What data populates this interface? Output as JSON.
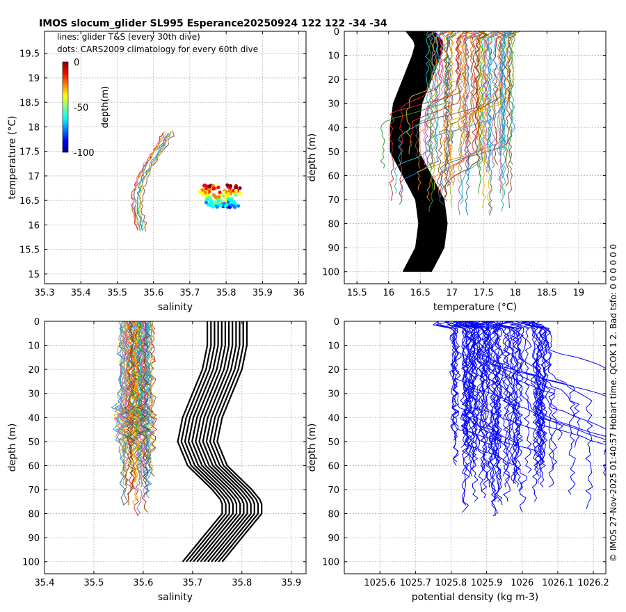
{
  "figure": {
    "title": "IMOS slocum_glider SL995 Esperance20250924 122  122  -34  -34",
    "side_note": "© IMOS 27-Nov-2025 01:40:57 Hobart time. QCOK 1  2. Bad tsfo: 0  0  0  0  0  0"
  },
  "colors": {
    "axis": "#000000",
    "grid": "#b4b4b4",
    "profile_black": "#000000",
    "density_line": "#0000ff",
    "line_palette": [
      "#ff7f0e",
      "#1f77b4",
      "#2ca02c",
      "#d62728",
      "#9467bd",
      "#8c564b",
      "#e377c2",
      "#bcbd22",
      "#17becf",
      "#ffb000",
      "#7f3f00",
      "#3a9bdc"
    ],
    "colorbar": [
      "#7f0000",
      "#ff0000",
      "#ff8000",
      "#ffff00",
      "#80ff80",
      "#00ffff",
      "#0080ff",
      "#0000ff",
      "#00008f"
    ]
  },
  "chart_data": [
    {
      "id": "ts",
      "type": "scatter",
      "title": "",
      "xlabel": "salinity",
      "ylabel": "temperature (°C)",
      "xlim": [
        35.3,
        36.02
      ],
      "ylim": [
        14.8,
        19.95
      ],
      "xticks": [
        35.3,
        35.4,
        35.5,
        35.6,
        35.7,
        35.8,
        35.9,
        36
      ],
      "xtick_labels": [
        "35.3",
        "35.4",
        "35.5",
        "35.6",
        "35.7",
        "35.8",
        "35.9",
        "36"
      ],
      "yticks": [
        15,
        15.5,
        16,
        16.5,
        17,
        17.5,
        18,
        18.5,
        19,
        19.5
      ],
      "ytick_labels": [
        "15",
        "15.5",
        "16",
        "16.5",
        "17",
        "17.5",
        "18",
        "18.5",
        "19",
        "19.5"
      ],
      "grid": true,
      "legend_lines": [
        "lines: glider T&S (every 30th dive)",
        "dots: CARS2009 climatology for every 60th dive"
      ],
      "colorbar": {
        "label": "depth(m)",
        "ticks": [
          "0",
          "-50",
          "-100"
        ],
        "range": [
          -100,
          0
        ]
      },
      "glider_lines": {
        "n": 10,
        "salinity_start": 35.53,
        "salinity_end": 35.62,
        "temperature_start": 15.9,
        "temperature_end": 17.9,
        "depth_range": [
          0,
          -100
        ]
      },
      "climatology_dots": {
        "n": 120,
        "salinity_range": [
          35.7,
          35.83
        ],
        "temperature_range": [
          16.2,
          16.85
        ],
        "depth_range": [
          0,
          -100
        ]
      }
    },
    {
      "id": "temp_depth",
      "type": "line",
      "xlabel": "temperature (°C)",
      "ylabel": "depth (m)",
      "xlim": [
        15.3,
        19.43
      ],
      "ylim": [
        0,
        105
      ],
      "y_reversed": true,
      "xticks": [
        15.5,
        16,
        16.5,
        17,
        17.5,
        18,
        18.5,
        19
      ],
      "xtick_labels": [
        "15.5",
        "16",
        "16.5",
        "17",
        "17.5",
        "18",
        "18.5",
        "19"
      ],
      "yticks": [
        0,
        10,
        20,
        30,
        40,
        50,
        60,
        70,
        80,
        90,
        100
      ],
      "ytick_labels": [
        "0",
        "10",
        "20",
        "30",
        "40",
        "50",
        "60",
        "70",
        "80",
        "90",
        "100"
      ],
      "grid": true,
      "climatology": {
        "depth": [
          0,
          5,
          10,
          20,
          30,
          40,
          50,
          60,
          70,
          80,
          90,
          100
        ],
        "temperature": [
          16.5,
          16.65,
          16.6,
          16.45,
          16.3,
          16.25,
          16.25,
          16.45,
          16.65,
          16.7,
          16.65,
          16.45
        ],
        "spread": 0.22
      },
      "glider_profiles": {
        "n": 70,
        "temperature_range": [
          15.8,
          18.05
        ],
        "max_depth": [
          45,
          78
        ]
      }
    },
    {
      "id": "sal_depth",
      "type": "line",
      "xlabel": "salinity",
      "ylabel": "depth (m)",
      "xlim": [
        35.4,
        35.93
      ],
      "ylim": [
        0,
        105
      ],
      "y_reversed": true,
      "xticks": [
        35.4,
        35.5,
        35.6,
        35.7,
        35.8,
        35.9
      ],
      "xtick_labels": [
        "35.4",
        "35.5",
        "35.6",
        "35.7",
        "35.8",
        "35.9"
      ],
      "yticks": [
        0,
        10,
        20,
        30,
        40,
        50,
        60,
        70,
        80,
        90,
        100
      ],
      "ytick_labels": [
        "0",
        "10",
        "20",
        "30",
        "40",
        "50",
        "60",
        "70",
        "80",
        "90",
        "100"
      ],
      "grid": true,
      "climatology": {
        "depth": [
          0,
          10,
          20,
          30,
          40,
          50,
          60,
          70,
          75,
          80,
          90,
          100
        ],
        "salinity": [
          35.77,
          35.77,
          35.76,
          35.74,
          35.72,
          35.71,
          35.73,
          35.78,
          35.8,
          35.8,
          35.76,
          35.72
        ],
        "spread": 0.04
      },
      "glider_profiles": {
        "n": 60,
        "salinity_range": [
          35.54,
          35.63
        ],
        "max_depth": [
          40,
          82
        ]
      }
    },
    {
      "id": "dens_depth",
      "type": "line",
      "xlabel": "potential density (kg m-3)",
      "ylabel": "depth (m)",
      "xlim": [
        1025.5,
        1026.235
      ],
      "ylim": [
        0,
        105
      ],
      "y_reversed": true,
      "xticks": [
        1025.6,
        1025.7,
        1025.8,
        1025.9,
        1026,
        1026.1,
        1026.2
      ],
      "xtick_labels": [
        "1025.6",
        "1025.7",
        "1025.8",
        "1025.9",
        "1026",
        "1026.1",
        "1026.2"
      ],
      "yticks": [
        0,
        10,
        20,
        30,
        40,
        50,
        60,
        70,
        80,
        90,
        100
      ],
      "ytick_labels": [
        "0",
        "10",
        "20",
        "30",
        "40",
        "50",
        "60",
        "70",
        "80",
        "90",
        "100"
      ],
      "grid": true,
      "glider_profiles": {
        "n": 70,
        "density_range": [
          1025.78,
          1026.24
        ],
        "max_depth": [
          45,
          82
        ]
      }
    }
  ]
}
